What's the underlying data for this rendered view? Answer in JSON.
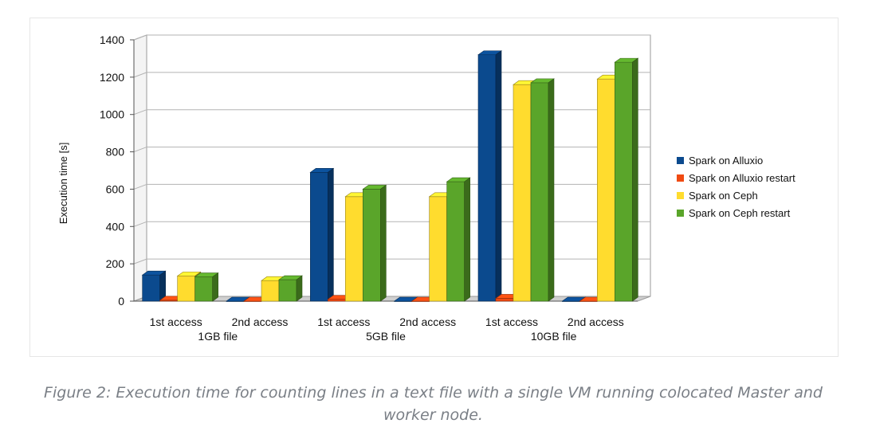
{
  "caption": "Figure 2: Execution time for counting lines in a text file with a single VM running colocated Master and worker node.",
  "chart_data": {
    "type": "bar",
    "title": "",
    "ylabel": "Execution time [s]",
    "xlabel": "",
    "ylim": [
      0,
      1400
    ],
    "yticks": [
      0,
      200,
      400,
      600,
      800,
      1000,
      1200,
      1400
    ],
    "grid": true,
    "legend_position": "right",
    "categories": [
      "1st access",
      "2nd access",
      "1st access",
      "2nd access",
      "1st access",
      "2nd access"
    ],
    "groups": [
      "1GB file",
      "5GB file",
      "10GB file"
    ],
    "series": [
      {
        "name": "Spark on Alluxio",
        "color": "#0b4a8e",
        "values": [
          140,
          0,
          690,
          0,
          1320,
          0
        ]
      },
      {
        "name": "Spark on Alluxio restart",
        "color": "#f04a12",
        "values": [
          5,
          0,
          10,
          0,
          15,
          0
        ]
      },
      {
        "name": "Spark on Ceph",
        "color": "#ffdc2e",
        "values": [
          135,
          110,
          560,
          560,
          1160,
          1190
        ]
      },
      {
        "name": "Spark on Ceph restart",
        "color": "#5aa52a",
        "values": [
          130,
          115,
          600,
          640,
          1170,
          1280
        ]
      }
    ]
  }
}
